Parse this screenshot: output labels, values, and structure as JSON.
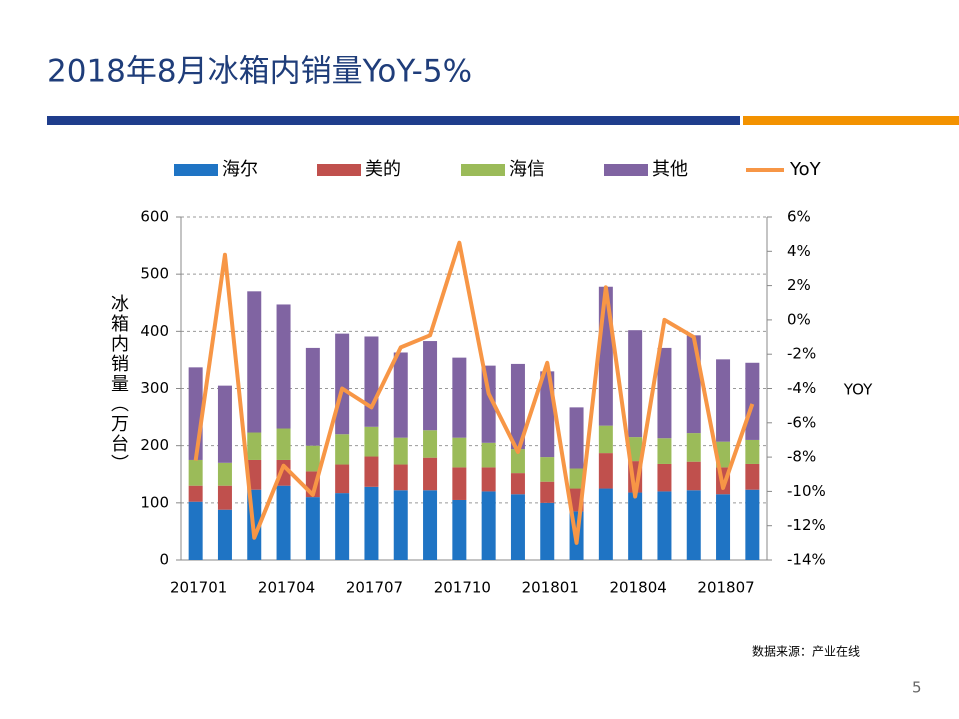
{
  "page_title": "2018年8月冰箱内销量YoY-5%",
  "source": "数据来源：产业在线",
  "page_number": "5",
  "chart_data": {
    "type": "stacked-bar-line",
    "y_label": "冰箱内销量（万台）",
    "y2_label": "YOY",
    "categories": [
      "201701",
      null,
      null,
      "201704",
      null,
      null,
      "201707",
      null,
      null,
      "201710",
      null,
      null,
      "201801",
      null,
      null,
      "201804",
      null,
      null,
      "201807",
      null
    ],
    "ylim": [
      0,
      600
    ],
    "yticks": [
      0,
      100,
      200,
      300,
      400,
      500,
      600
    ],
    "y2lim": [
      -14,
      6
    ],
    "y2ticks": [
      {
        "value": -14,
        "label": "-14%"
      },
      {
        "value": -12,
        "label": "-12%"
      },
      {
        "value": -10,
        "label": "-10%"
      },
      {
        "value": -8,
        "label": "-8%"
      },
      {
        "value": -6,
        "label": "-6%"
      },
      {
        "value": -4,
        "label": "-4%"
      },
      {
        "value": -2,
        "label": "-2%"
      },
      {
        "value": 0,
        "label": "0%"
      },
      {
        "value": 2,
        "label": "2%"
      },
      {
        "value": 4,
        "label": "4%"
      },
      {
        "value": 6,
        "label": "6%"
      }
    ],
    "grid": true,
    "series": [
      {
        "name": "海尔",
        "color": "#1f74c4",
        "values": [
          102,
          88,
          123,
          130,
          110,
          117,
          128,
          122,
          122,
          105,
          120,
          115,
          100,
          85,
          125,
          118,
          120,
          122,
          115,
          123
        ]
      },
      {
        "name": "美的",
        "color": "#c0504d",
        "values": [
          28,
          42,
          52,
          45,
          45,
          50,
          53,
          45,
          57,
          57,
          42,
          37,
          37,
          40,
          62,
          55,
          48,
          50,
          47,
          45
        ]
      },
      {
        "name": "海信",
        "color": "#9bbb59",
        "values": [
          45,
          40,
          48,
          55,
          45,
          53,
          52,
          47,
          48,
          52,
          43,
          42,
          43,
          35,
          48,
          42,
          45,
          50,
          45,
          42
        ]
      },
      {
        "name": "其他",
        "color": "#8064a2",
        "values": [
          162,
          135,
          247,
          217,
          171,
          176,
          158,
          149,
          156,
          140,
          135,
          149,
          150,
          107,
          243,
          187,
          158,
          171,
          144,
          135
        ]
      },
      {
        "name": "YoY",
        "color": "#f79646",
        "axis": "y2",
        "type": "line",
        "values": [
          -8.2,
          3.8,
          -12.7,
          -8.5,
          -10.2,
          -4.0,
          -5.1,
          -1.6,
          -0.9,
          4.5,
          -4.3,
          -7.7,
          -2.5,
          -13.0,
          1.9,
          -10.3,
          0.0,
          -1.0,
          -9.8,
          -4.9
        ]
      }
    ]
  }
}
